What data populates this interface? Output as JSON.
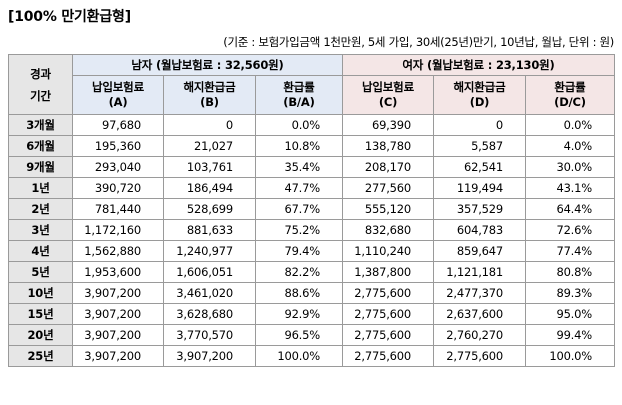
{
  "title": "[100% 만기환급형]",
  "note": "(기준 : 보험가입금액 1천만원, 5세 가입, 30세(25년)만기, 10년납, 월납, 단위 : 원)",
  "header": {
    "period_label_1": "경과",
    "period_label_2": "기간",
    "male_group": "남자 (월납보험료 : 32,560원)",
    "female_group": "여자 (월납보험료 : 23,130원)",
    "cols": [
      {
        "l1": "납입보험료",
        "l2": "(A)"
      },
      {
        "l1": "해지환급금",
        "l2": "(B)"
      },
      {
        "l1": "환급률",
        "l2": "(B/A)"
      },
      {
        "l1": "납입보험료",
        "l2": "(C)"
      },
      {
        "l1": "해지환급금",
        "l2": "(D)"
      },
      {
        "l1": "환급률",
        "l2": "(D/C)"
      }
    ]
  },
  "rows": [
    {
      "period": "3개월",
      "a": "97,680",
      "b": "0",
      "ba": "0.0%",
      "c": "69,390",
      "d": "0",
      "dc": "0.0%"
    },
    {
      "period": "6개월",
      "a": "195,360",
      "b": "21,027",
      "ba": "10.8%",
      "c": "138,780",
      "d": "5,587",
      "dc": "4.0%"
    },
    {
      "period": "9개월",
      "a": "293,040",
      "b": "103,761",
      "ba": "35.4%",
      "c": "208,170",
      "d": "62,541",
      "dc": "30.0%"
    },
    {
      "period": "1년",
      "a": "390,720",
      "b": "186,494",
      "ba": "47.7%",
      "c": "277,560",
      "d": "119,494",
      "dc": "43.1%"
    },
    {
      "period": "2년",
      "a": "781,440",
      "b": "528,699",
      "ba": "67.7%",
      "c": "555,120",
      "d": "357,529",
      "dc": "64.4%"
    },
    {
      "period": "3년",
      "a": "1,172,160",
      "b": "881,633",
      "ba": "75.2%",
      "c": "832,680",
      "d": "604,783",
      "dc": "72.6%"
    },
    {
      "period": "4년",
      "a": "1,562,880",
      "b": "1,240,977",
      "ba": "79.4%",
      "c": "1,110,240",
      "d": "859,647",
      "dc": "77.4%"
    },
    {
      "period": "5년",
      "a": "1,953,600",
      "b": "1,606,051",
      "ba": "82.2%",
      "c": "1,387,800",
      "d": "1,121,181",
      "dc": "80.8%"
    },
    {
      "period": "10년",
      "a": "3,907,200",
      "b": "3,461,020",
      "ba": "88.6%",
      "c": "2,775,600",
      "d": "2,477,370",
      "dc": "89.3%"
    },
    {
      "period": "15년",
      "a": "3,907,200",
      "b": "3,628,680",
      "ba": "92.9%",
      "c": "2,775,600",
      "d": "2,637,600",
      "dc": "95.0%"
    },
    {
      "period": "20년",
      "a": "3,907,200",
      "b": "3,770,570",
      "ba": "96.5%",
      "c": "2,775,600",
      "d": "2,760,270",
      "dc": "99.4%"
    },
    {
      "period": "25년",
      "a": "3,907,200",
      "b": "3,907,200",
      "ba": "100.0%",
      "c": "2,775,600",
      "d": "2,775,600",
      "dc": "100.0%"
    }
  ]
}
